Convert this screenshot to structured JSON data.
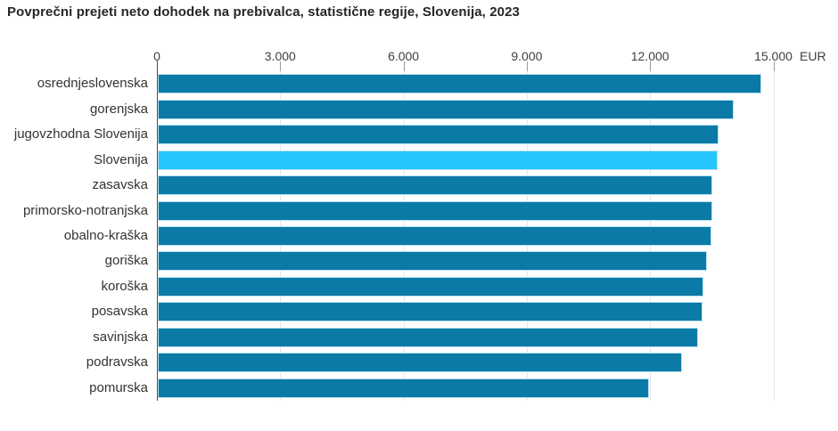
{
  "title": "Povprečni prejeti neto dohodek na prebivalca, statistične regije, Slovenija, 2023",
  "chart_data": {
    "type": "bar",
    "orientation": "horizontal",
    "title": "Povprečni prejeti neto dohodek na prebivalca, statistične regije, Slovenija, 2023",
    "unit_label": "EUR",
    "x_axis": {
      "position": "top",
      "min": 0,
      "max": 15000,
      "ticks": [
        0,
        3000,
        6000,
        9000,
        12000,
        15000
      ],
      "tick_labels": [
        "0",
        "3.000",
        "6.000",
        "9.000",
        "12.000",
        "15.000"
      ]
    },
    "grid": true,
    "legend": false,
    "categories": [
      "osrednjeslovenska",
      "gorenjska",
      "jugovzhodna Slovenija",
      "Slovenija",
      "zasavska",
      "primorsko-notranjska",
      "obalno-kraška",
      "goriška",
      "koroška",
      "posavska",
      "savinjska",
      "podravska",
      "pomurska"
    ],
    "values": [
      14710,
      14030,
      13660,
      13640,
      13520,
      13510,
      13500,
      13390,
      13300,
      13280,
      13170,
      12780,
      11980
    ],
    "highlight_category": "Slovenija",
    "colors": {
      "bar": "#0b7aa6",
      "highlight_bar": "#25c5fd",
      "bar_border": "#b9e2f2",
      "gridline": "#e6e6e6",
      "axis_line": "#4d4d4d",
      "tick": "#9b9b9b",
      "axis_text": "#404040",
      "label_text": "#333333",
      "title_text": "#262626"
    }
  }
}
